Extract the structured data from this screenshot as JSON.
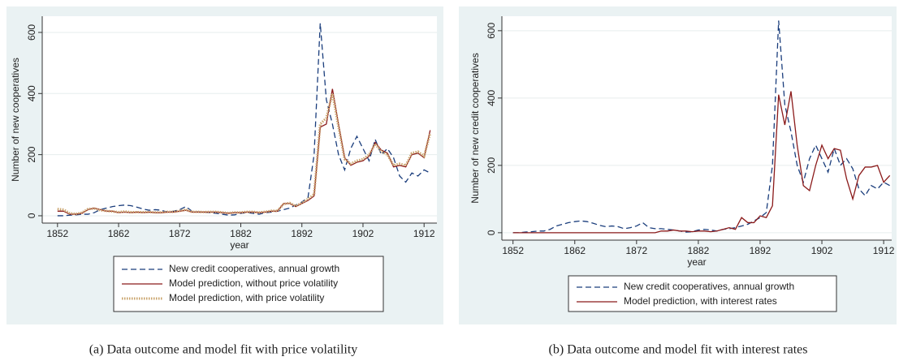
{
  "chart_data": [
    {
      "type": "line",
      "caption": "(a) Data outcome and model fit with price volatility",
      "xlabel": "year",
      "ylabel": "Number of new cooperatives",
      "x": [
        1852,
        1853,
        1854,
        1855,
        1856,
        1857,
        1858,
        1859,
        1860,
        1861,
        1862,
        1863,
        1864,
        1865,
        1866,
        1867,
        1868,
        1869,
        1870,
        1871,
        1872,
        1873,
        1874,
        1875,
        1876,
        1877,
        1878,
        1879,
        1880,
        1881,
        1882,
        1883,
        1884,
        1885,
        1886,
        1887,
        1888,
        1889,
        1890,
        1891,
        1892,
        1893,
        1894,
        1895,
        1896,
        1897,
        1898,
        1899,
        1900,
        1901,
        1902,
        1903,
        1904,
        1905,
        1906,
        1907,
        1908,
        1909,
        1910,
        1911,
        1912,
        1913
      ],
      "xlim": [
        1849.5,
        1914.1
      ],
      "xticks": [
        1852,
        1862,
        1872,
        1882,
        1892,
        1902,
        1912
      ],
      "ylim": [
        -24,
        653
      ],
      "yticks": [
        0,
        200,
        400,
        600
      ],
      "grid": true,
      "series": [
        {
          "name": "New credit cooperatives, annual growth",
          "color": "#1a3d7c",
          "style": "dashed",
          "values": [
            0,
            0,
            2,
            3,
            5,
            5,
            10,
            20,
            25,
            30,
            33,
            35,
            33,
            28,
            22,
            18,
            20,
            18,
            12,
            15,
            20,
            30,
            15,
            12,
            12,
            10,
            8,
            5,
            2,
            3,
            8,
            10,
            8,
            5,
            10,
            12,
            15,
            20,
            25,
            35,
            45,
            60,
            200,
            630,
            380,
            300,
            200,
            150,
            220,
            260,
            220,
            180,
            250,
            200,
            220,
            190,
            130,
            110,
            140,
            130,
            150,
            140
          ]
        },
        {
          "name": "Model prediction, without price volatility",
          "color": "#8b1a1a",
          "style": "solid",
          "values": [
            15,
            15,
            5,
            5,
            8,
            20,
            25,
            20,
            15,
            15,
            10,
            12,
            10,
            12,
            10,
            12,
            10,
            10,
            12,
            12,
            15,
            18,
            12,
            12,
            12,
            12,
            12,
            10,
            8,
            10,
            10,
            12,
            12,
            10,
            12,
            15,
            15,
            40,
            40,
            30,
            40,
            50,
            65,
            290,
            300,
            415,
            300,
            190,
            165,
            175,
            180,
            195,
            240,
            215,
            205,
            160,
            165,
            160,
            200,
            205,
            190,
            280
          ]
        },
        {
          "name": "Model prediction, with price volatility",
          "color": "#c9a36b",
          "style": "dotted",
          "values": [
            22,
            20,
            8,
            6,
            10,
            22,
            24,
            18,
            16,
            14,
            12,
            14,
            12,
            12,
            12,
            12,
            11,
            11,
            13,
            13,
            16,
            20,
            13,
            13,
            12,
            13,
            13,
            11,
            9,
            11,
            11,
            13,
            13,
            11,
            13,
            16,
            16,
            38,
            42,
            32,
            42,
            55,
            70,
            300,
            320,
            400,
            290,
            185,
            170,
            180,
            185,
            200,
            235,
            210,
            200,
            165,
            170,
            165,
            205,
            210,
            195,
            270
          ]
        }
      ]
    },
    {
      "type": "line",
      "caption": "(b) Data outcome and model fit with interest rates",
      "xlabel": "year",
      "ylabel": "Number of new credit cooperatives",
      "x": [
        1852,
        1853,
        1854,
        1855,
        1856,
        1857,
        1858,
        1859,
        1860,
        1861,
        1862,
        1863,
        1864,
        1865,
        1866,
        1867,
        1868,
        1869,
        1870,
        1871,
        1872,
        1873,
        1874,
        1875,
        1876,
        1877,
        1878,
        1879,
        1880,
        1881,
        1882,
        1883,
        1884,
        1885,
        1886,
        1887,
        1888,
        1889,
        1890,
        1891,
        1892,
        1893,
        1894,
        1895,
        1896,
        1897,
        1898,
        1899,
        1900,
        1901,
        1902,
        1903,
        1904,
        1905,
        1906,
        1907,
        1908,
        1909,
        1910,
        1911,
        1912,
        1913
      ],
      "xlim": [
        1850.2,
        1913.3
      ],
      "xticks": [
        1852,
        1862,
        1872,
        1882,
        1892,
        1902,
        1912
      ],
      "ylim": [
        -22,
        643
      ],
      "yticks": [
        0,
        200,
        400,
        600
      ],
      "grid": true,
      "series": [
        {
          "name": "New credit cooperatives, annual growth",
          "color": "#1a3d7c",
          "style": "dashed",
          "values": [
            0,
            0,
            2,
            3,
            5,
            5,
            10,
            20,
            25,
            30,
            33,
            35,
            33,
            28,
            22,
            18,
            20,
            18,
            12,
            15,
            20,
            30,
            15,
            12,
            12,
            10,
            8,
            5,
            2,
            3,
            8,
            10,
            8,
            5,
            10,
            12,
            15,
            20,
            25,
            35,
            45,
            60,
            200,
            630,
            380,
            300,
            200,
            150,
            220,
            260,
            220,
            180,
            250,
            200,
            220,
            190,
            130,
            110,
            140,
            130,
            150,
            140
          ]
        },
        {
          "name": "Model prediction, with interest rates",
          "color": "#8b1a1a",
          "style": "solid",
          "values": [
            0,
            0,
            0,
            0,
            0,
            0,
            0,
            0,
            0,
            0,
            0,
            0,
            0,
            0,
            0,
            0,
            0,
            0,
            0,
            0,
            0,
            0,
            0,
            0,
            5,
            5,
            8,
            5,
            5,
            3,
            5,
            5,
            3,
            5,
            10,
            15,
            10,
            45,
            30,
            30,
            50,
            45,
            80,
            410,
            320,
            420,
            260,
            140,
            125,
            200,
            260,
            220,
            250,
            245,
            160,
            100,
            170,
            195,
            195,
            200,
            150,
            170
          ]
        }
      ]
    }
  ]
}
